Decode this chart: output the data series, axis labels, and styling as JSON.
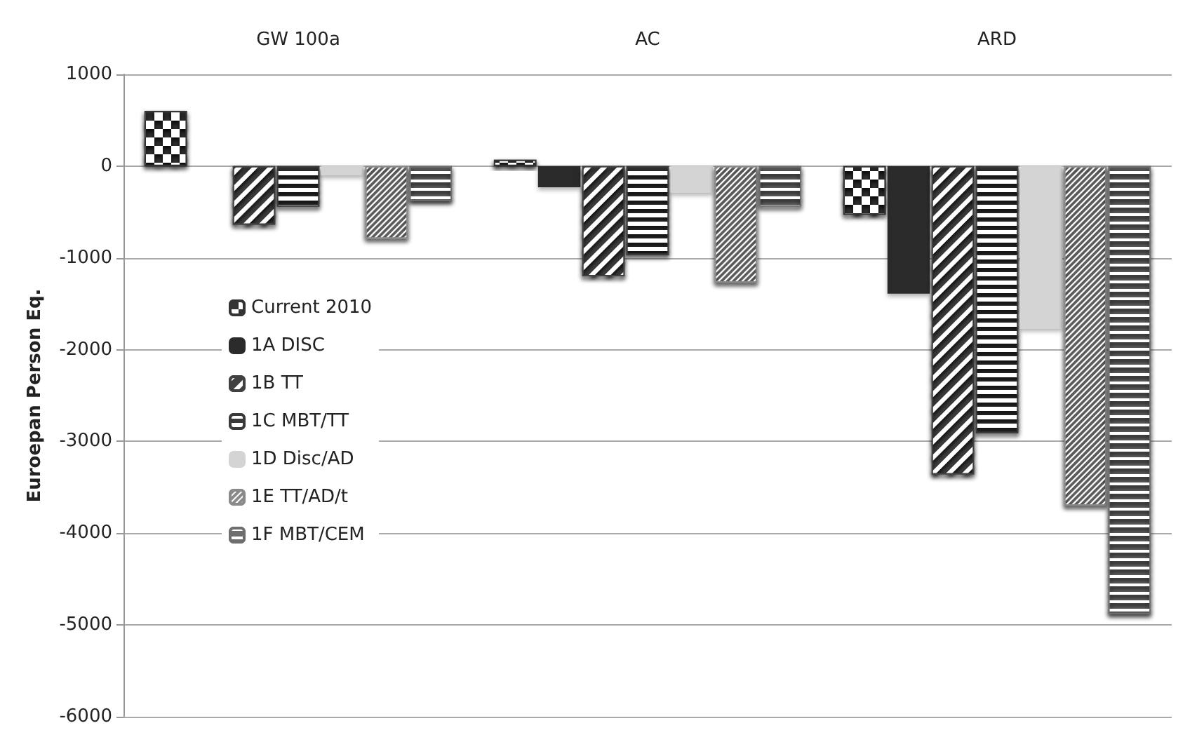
{
  "chart_data": {
    "type": "bar",
    "ylabel": "Euroepan Person Eq.",
    "categories": [
      "GW 100a",
      "AC",
      "ARD"
    ],
    "series": [
      {
        "name": "Current 2010",
        "color": "#333333",
        "values": [
          600,
          70,
          -530
        ]
      },
      {
        "name": "1A DISC",
        "color": "#2b2b2b",
        "values": [
          null,
          -230,
          -1390
        ]
      },
      {
        "name": "1B TT",
        "color": "#404040",
        "values": [
          -640,
          -1200,
          -3360
        ]
      },
      {
        "name": "1C MBT/TT",
        "color": "#3a3a3a",
        "values": [
          -440,
          -970,
          -2910
        ]
      },
      {
        "name": "1D Disc/AD",
        "color": "#d4d4d4",
        "values": [
          -100,
          -290,
          -1770
        ]
      },
      {
        "name": "1E TT/AD/t",
        "color": "#8a8a8a",
        "values": [
          -790,
          -1270,
          -3700
        ]
      },
      {
        "name": "1F MBT/CEM",
        "color": "#6e6e6e",
        "values": [
          -380,
          -440,
          -4880
        ]
      }
    ],
    "ylim": [
      -6000,
      1000
    ],
    "yticks": [
      -6000,
      -5000,
      -4000,
      -3000,
      -2000,
      -1000,
      0,
      1000
    ],
    "grid": "y",
    "legend": "left"
  }
}
